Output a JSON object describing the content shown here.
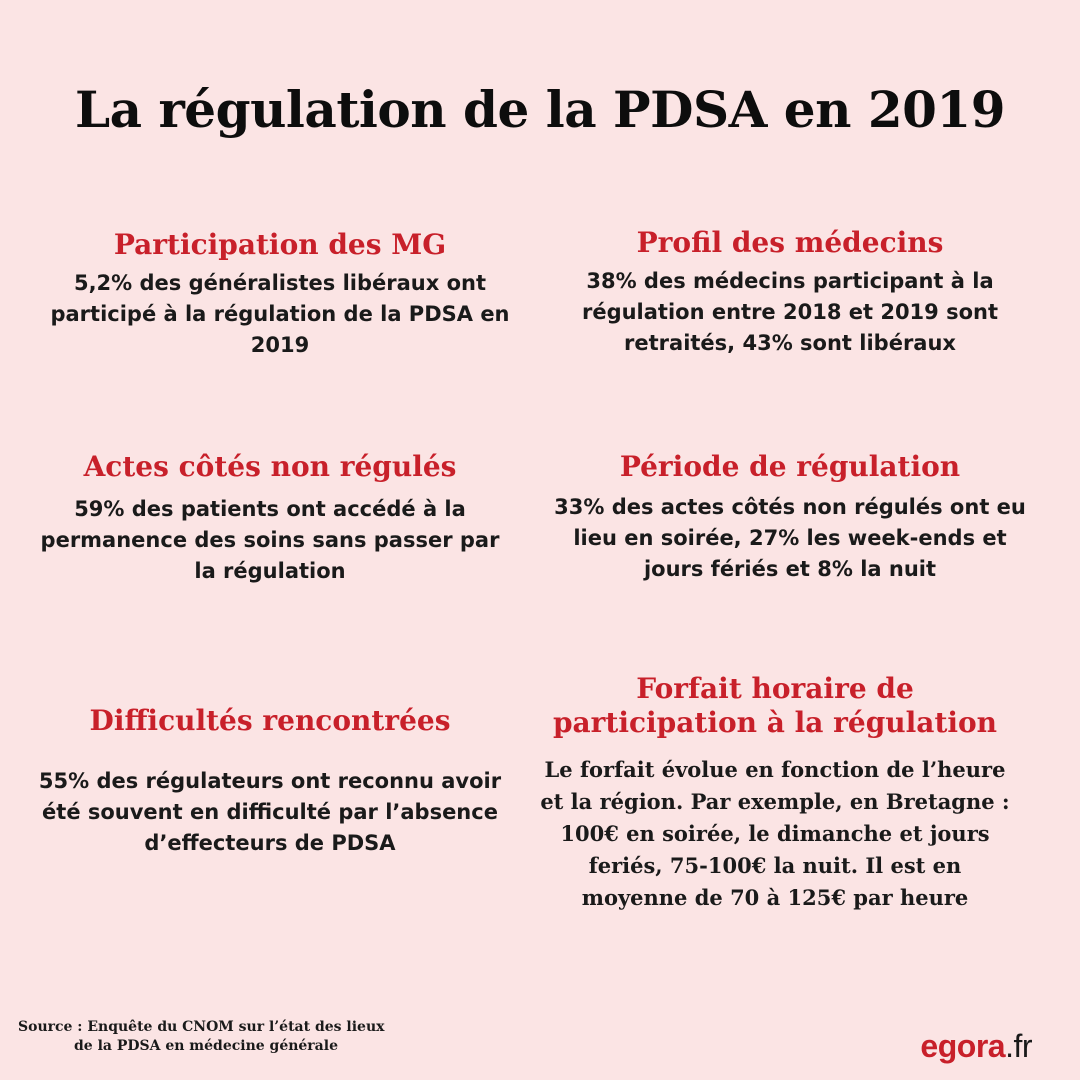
{
  "title": "La régulation de la PDSA en 2019",
  "cards": [
    {
      "heading": "Participation des MG",
      "body": "5,2% des généralistes libéraux ont participé à la régulation de la PDSA en 2019"
    },
    {
      "heading": "Profil des médecins",
      "body": "38% des médecins participant à la régulation entre 2018 et 2019 sont retraités, 43% sont libéraux"
    },
    {
      "heading": "Actes côtés non régulés",
      "body": "59% des patients ont accédé à la permanence des soins sans passer par la régulation"
    },
    {
      "heading": "Période de régulation",
      "body": "33% des actes côtés non régulés ont eu lieu en soirée, 27% les week-ends et jours fériés et 8% la nuit"
    },
    {
      "heading": "Difficultés rencontrées",
      "body": "55% des régulateurs ont reconnu avoir été souvent en difficulté par l’absence d’effecteurs de PDSA"
    },
    {
      "heading": "Forfait horaire de participation à la régulation",
      "body": "Le forfait évolue en fonction de l’heure et la région. Par exemple, en Bretagne : 100€ en soirée, le dimanche et jours feriés, 75-100€ la nuit. Il est en moyenne de 70 à 125€ par heure"
    }
  ],
  "source": {
    "line1": "Source : Enquête du CNOM sur l’état des lieux",
    "line2": "de la PDSA en médecine générale"
  },
  "logo": {
    "brand": "egora",
    "tld": ".fr",
    "color": "#c8202a"
  },
  "colors": {
    "background": "#fbe4e4",
    "heading": "#c8202a",
    "text": "#111111"
  }
}
